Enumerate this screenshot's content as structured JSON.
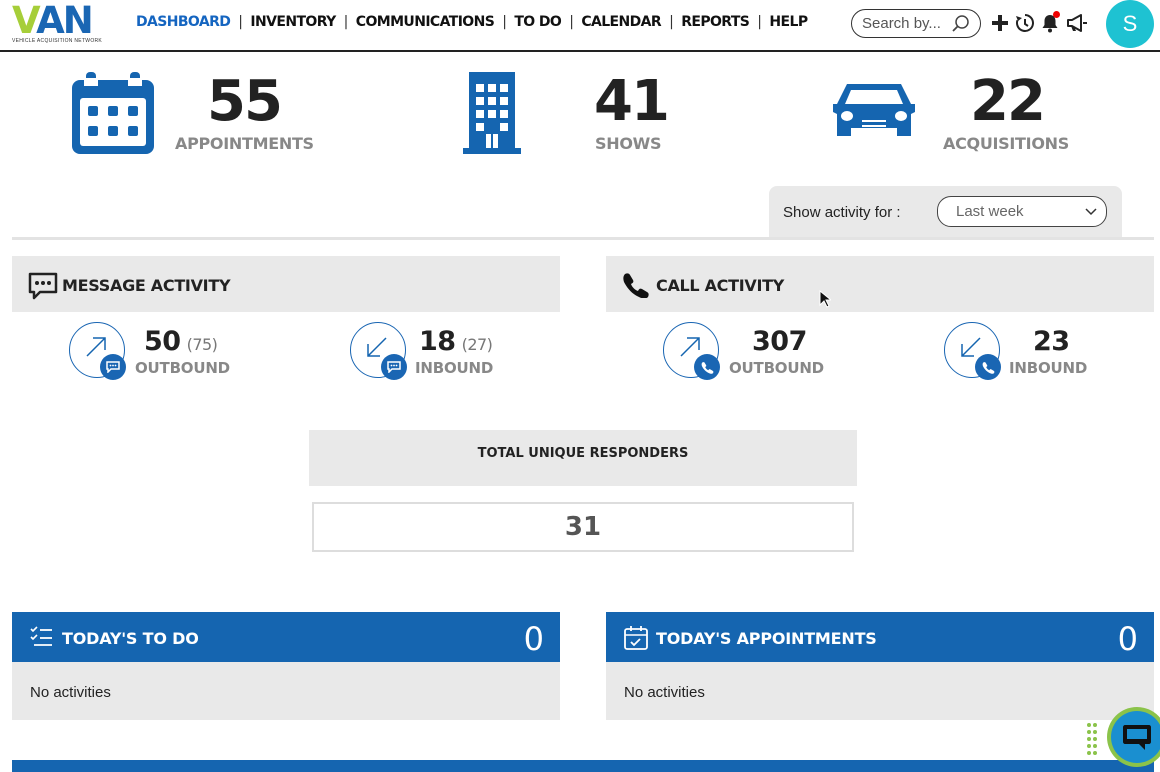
{
  "header": {
    "logo_text_v": "V",
    "logo_text_an": "AN",
    "logo_subtitle": "VEHICLE ACQUISITION NETWORK",
    "nav": [
      {
        "label": "DASHBOARD",
        "active": true
      },
      {
        "label": "INVENTORY",
        "active": false
      },
      {
        "label": "COMMUNICATIONS",
        "active": false
      },
      {
        "label": "TO DO",
        "active": false
      },
      {
        "label": "CALENDAR",
        "active": false
      },
      {
        "label": "REPORTS",
        "active": false
      },
      {
        "label": "HELP",
        "active": false
      }
    ],
    "nav_separator": "|",
    "search_placeholder": "Search by...",
    "icons": [
      "plus-icon",
      "history-icon",
      "bell-icon",
      "megaphone-icon"
    ],
    "avatar_initial": "S",
    "avatar_color": "#1ec2d2"
  },
  "stats": [
    {
      "value": "55",
      "label": "APPOINTMENTS",
      "icon": "calendar-icon"
    },
    {
      "value": "41",
      "label": "SHOWS",
      "icon": "building-icon"
    },
    {
      "value": "22",
      "label": "ACQUISITIONS",
      "icon": "car-icon"
    }
  ],
  "filter": {
    "label": "Show activity for :",
    "selected": "Last week"
  },
  "message_activity": {
    "title": "MESSAGE ACTIVITY",
    "outbound": {
      "value": "50",
      "sub": "(75)",
      "label": "OUTBOUND"
    },
    "inbound": {
      "value": "18",
      "sub": "(27)",
      "label": "INBOUND"
    }
  },
  "call_activity": {
    "title": "CALL ACTIVITY",
    "outbound": {
      "value": "307",
      "label": "OUTBOUND"
    },
    "inbound": {
      "value": "23",
      "label": "INBOUND"
    }
  },
  "responders": {
    "title": "TOTAL UNIQUE RESPONDERS",
    "value": "31"
  },
  "todo": {
    "title": "TODAY'S TO DO",
    "count": "0",
    "empty_text": "No activities"
  },
  "appointments": {
    "title": "TODAY'S APPOINTMENTS",
    "count": "0",
    "empty_text": "No activities"
  },
  "colors": {
    "brand_blue": "#1565b0",
    "brand_green": "#a6ce39",
    "panel_grey": "#e9e9e9"
  }
}
